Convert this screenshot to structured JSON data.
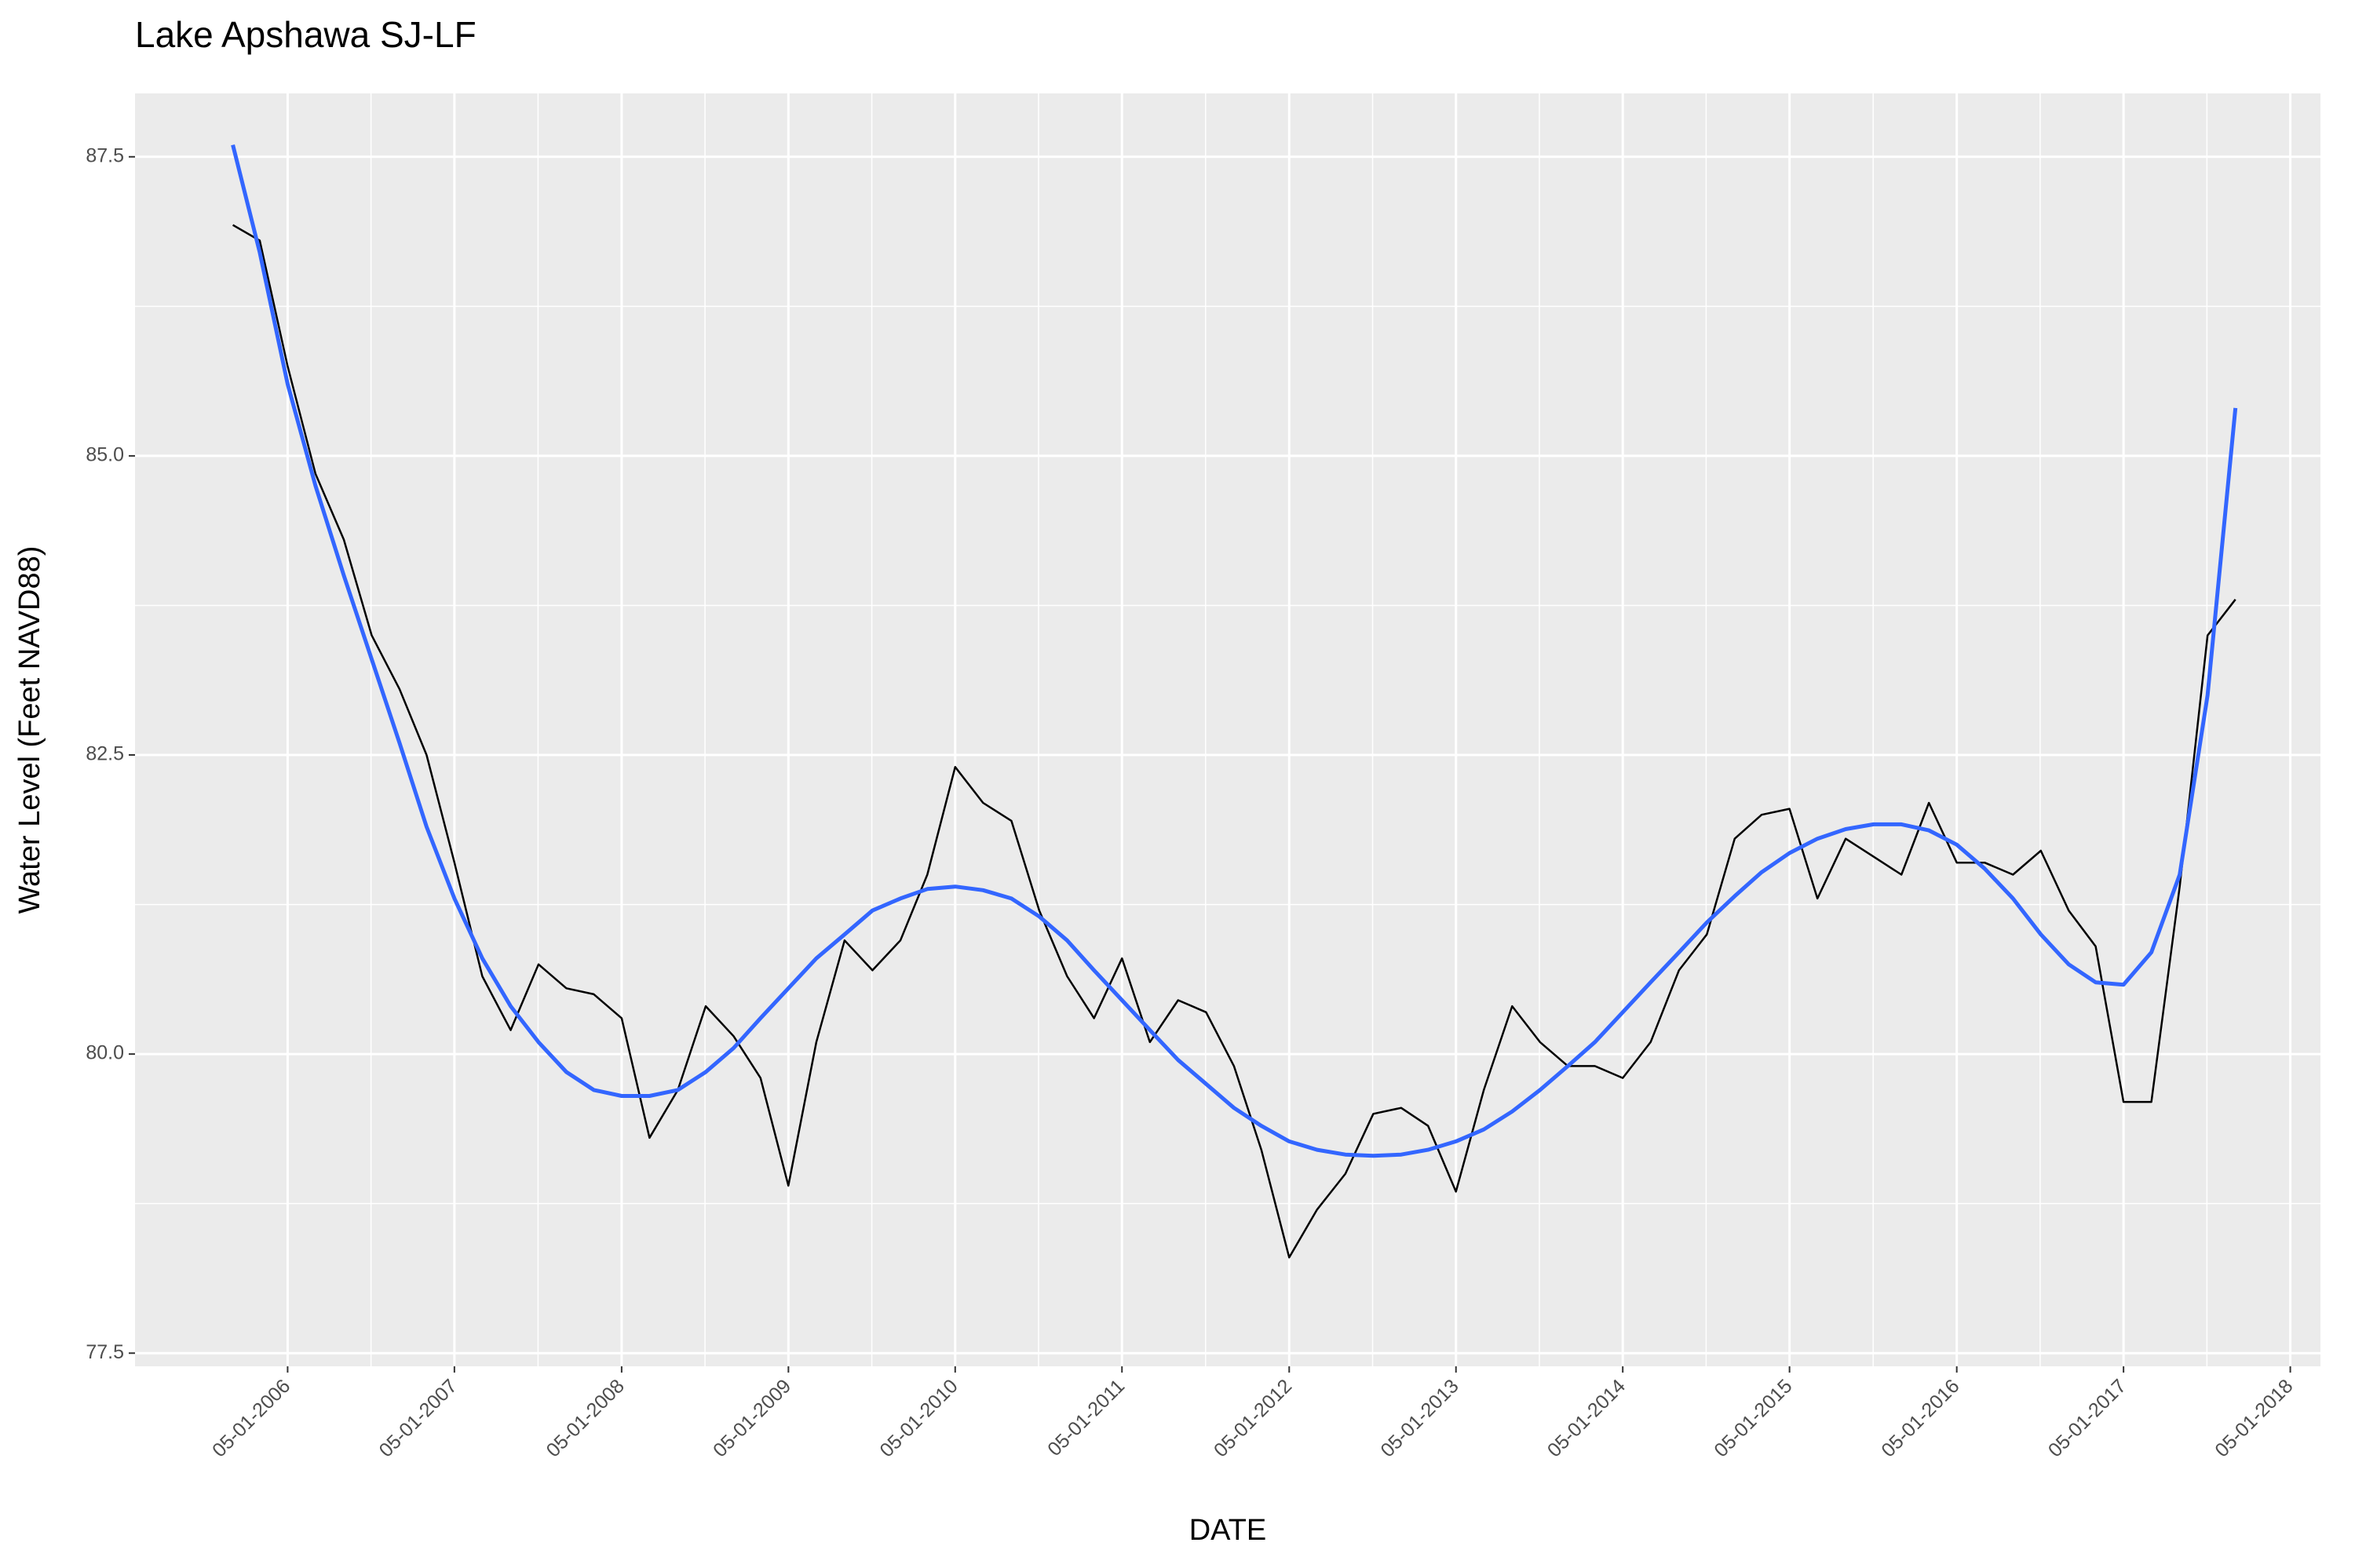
{
  "chart_data": {
    "type": "line",
    "title": "Lake Apshawa SJ-LF",
    "x_label": "DATE",
    "y_label": "Water Level (Feet NAVD88)",
    "x": [
      "2006-01-01",
      "2006-03-01",
      "2006-05-01",
      "2006-07-01",
      "2006-09-01",
      "2006-11-01",
      "2007-01-01",
      "2007-03-01",
      "2007-05-01",
      "2007-07-01",
      "2007-09-01",
      "2007-11-01",
      "2008-01-01",
      "2008-03-01",
      "2008-05-01",
      "2008-07-01",
      "2008-09-01",
      "2008-11-01",
      "2009-01-01",
      "2009-03-01",
      "2009-05-01",
      "2009-07-01",
      "2009-09-01",
      "2009-11-01",
      "2010-01-01",
      "2010-03-01",
      "2010-05-01",
      "2010-07-01",
      "2010-09-01",
      "2010-11-01",
      "2011-01-01",
      "2011-03-01",
      "2011-05-01",
      "2011-07-01",
      "2011-09-01",
      "2011-11-01",
      "2012-01-01",
      "2012-03-01",
      "2012-05-01",
      "2012-07-01",
      "2012-09-01",
      "2012-11-01",
      "2013-01-01",
      "2013-03-01",
      "2013-05-01",
      "2013-07-01",
      "2013-09-01",
      "2013-11-01",
      "2014-01-01",
      "2014-03-01",
      "2014-05-01",
      "2014-07-01",
      "2014-09-01",
      "2014-11-01",
      "2015-01-01",
      "2015-03-01",
      "2015-05-01",
      "2015-07-01",
      "2015-09-01",
      "2015-11-01",
      "2016-01-01",
      "2016-03-01",
      "2016-05-01",
      "2016-07-01",
      "2016-09-01",
      "2016-11-01",
      "2017-01-01",
      "2017-03-01",
      "2017-05-01",
      "2017-07-01",
      "2017-09-01",
      "2017-11-01",
      "2018-01-01"
    ],
    "series": [
      {
        "color": "#000000",
        "values": [
          86.93,
          86.8,
          85.75,
          84.85,
          84.3,
          83.5,
          83.05,
          82.5,
          81.6,
          80.65,
          80.2,
          80.75,
          80.55,
          80.5,
          80.3,
          79.3,
          79.7,
          80.4,
          80.15,
          79.8,
          78.9,
          80.1,
          80.95,
          80.7,
          80.95,
          81.5,
          82.4,
          82.1,
          81.95,
          81.2,
          80.65,
          80.3,
          80.8,
          80.1,
          80.45,
          80.35,
          79.9,
          79.2,
          78.3,
          78.7,
          79.0,
          79.5,
          79.55,
          79.4,
          78.85,
          79.7,
          80.4,
          80.1,
          79.9,
          79.9,
          79.8,
          80.1,
          80.7,
          81.0,
          81.8,
          82.0,
          82.05,
          81.3,
          81.8,
          81.65,
          81.5,
          82.1,
          81.6,
          81.6,
          81.5,
          81.7,
          81.2,
          80.9,
          79.6,
          79.6,
          81.4,
          83.5,
          83.8
        ]
      },
      {
        "color": "#3366ff",
        "values": [
          87.6,
          86.7,
          85.6,
          84.75,
          84.0,
          83.3,
          82.6,
          81.9,
          81.3,
          80.8,
          80.4,
          80.1,
          79.85,
          79.7,
          79.65,
          79.65,
          79.7,
          79.85,
          80.05,
          80.3,
          80.55,
          80.8,
          81.0,
          81.2,
          81.3,
          81.38,
          81.4,
          81.37,
          81.3,
          81.15,
          80.95,
          80.7,
          80.45,
          80.2,
          79.95,
          79.75,
          79.55,
          79.4,
          79.27,
          79.2,
          79.16,
          79.15,
          79.16,
          79.2,
          79.27,
          79.37,
          79.52,
          79.7,
          79.9,
          80.1,
          80.35,
          80.6,
          80.85,
          81.1,
          81.32,
          81.52,
          81.68,
          81.8,
          81.88,
          81.92,
          81.92,
          81.87,
          81.75,
          81.55,
          81.3,
          81.0,
          80.75,
          80.6,
          80.58,
          80.85,
          81.5,
          83.0,
          85.4
        ]
      }
    ],
    "xlim": [
      "2005-06-01",
      "2018-07-06"
    ],
    "xticks": [
      {
        "value": "2006-05-01",
        "label": "05-01-2006"
      },
      {
        "value": "2007-05-01",
        "label": "05-01-2007"
      },
      {
        "value": "2008-05-01",
        "label": "05-01-2008"
      },
      {
        "value": "2009-05-01",
        "label": "05-01-2009"
      },
      {
        "value": "2010-05-01",
        "label": "05-01-2010"
      },
      {
        "value": "2011-05-01",
        "label": "05-01-2011"
      },
      {
        "value": "2012-05-01",
        "label": "05-01-2012"
      },
      {
        "value": "2013-05-01",
        "label": "05-01-2013"
      },
      {
        "value": "2014-05-01",
        "label": "05-01-2014"
      },
      {
        "value": "2015-05-01",
        "label": "05-01-2015"
      },
      {
        "value": "2016-05-01",
        "label": "05-01-2016"
      },
      {
        "value": "2017-05-01",
        "label": "05-01-2017"
      },
      {
        "value": "2018-05-01",
        "label": "05-01-2018"
      }
    ],
    "ylim": [
      77.39,
      88.03
    ],
    "yticks": [
      77.5,
      {
        "value": 80,
        "label": "80.0"
      },
      82.5,
      {
        "value": 85,
        "label": "85.0"
      },
      87.5
    ],
    "grid": true
  }
}
